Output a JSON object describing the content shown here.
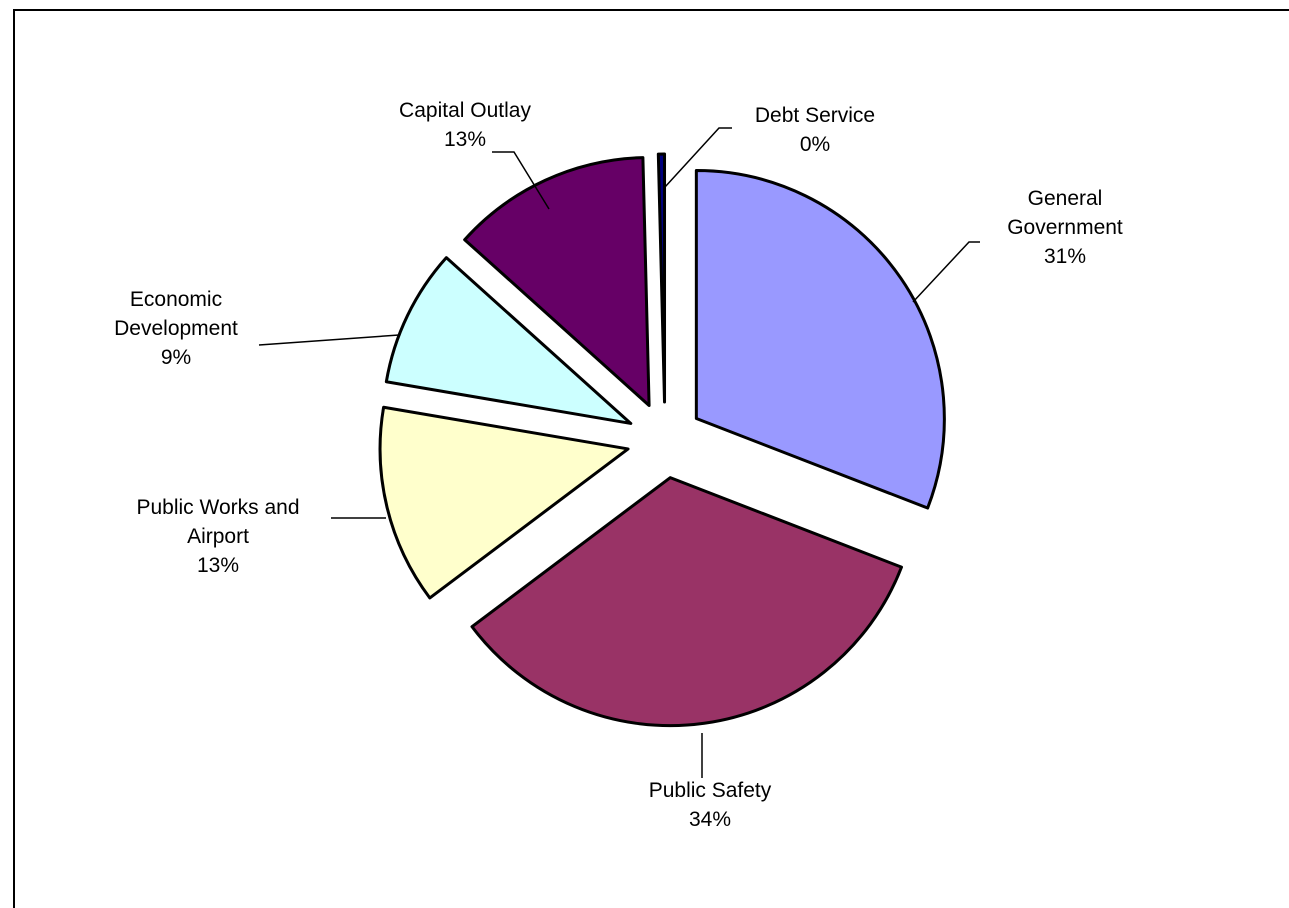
{
  "chart_data": {
    "type": "pie",
    "title": "",
    "slices": [
      {
        "label": "General Government",
        "percent_label": "31%",
        "value": 31,
        "color": "#9999ff"
      },
      {
        "label": "Public Safety",
        "percent_label": "34%",
        "value": 34,
        "color": "#993366"
      },
      {
        "label": "Public Works and Airport",
        "percent_label": "13%",
        "value": 13,
        "color": "#ffffcc"
      },
      {
        "label": "Economic Development",
        "percent_label": "9%",
        "value": 9,
        "color": "#ccffff"
      },
      {
        "label": "Capital Outlay",
        "percent_label": "13%",
        "value": 13,
        "color": "#660066"
      },
      {
        "label": "Debt Service",
        "percent_label": "0%",
        "value": 0.4,
        "color": "#000080"
      }
    ],
    "legend": "none",
    "exploded": true
  }
}
